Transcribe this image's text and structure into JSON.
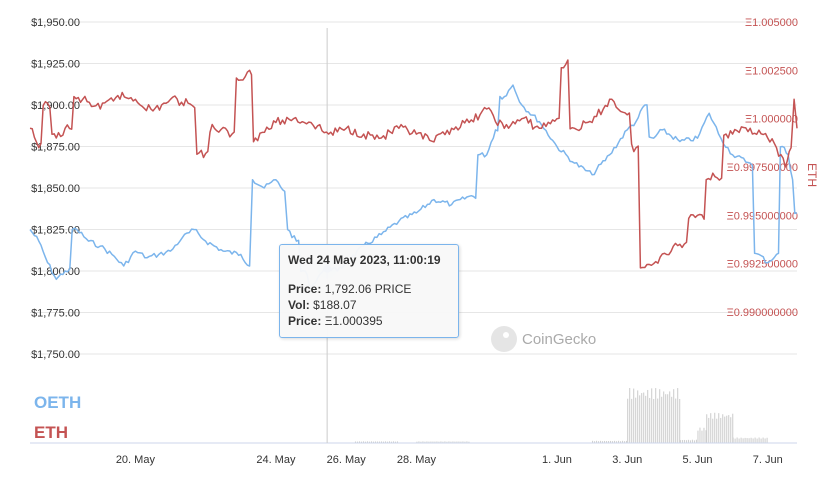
{
  "chart_data": {
    "type": "line",
    "title": "",
    "left_axis": {
      "ticks": [
        "$1,950.00",
        "$1,925.00",
        "$1,900.00",
        "$1,875.00",
        "$1,850.00",
        "$1,825.00",
        "$1,800.00",
        "$1,775.00",
        "$1,750.00"
      ],
      "range": [
        1750,
        1950
      ]
    },
    "right_axis": {
      "title": "ETH",
      "ticks": [
        "Ξ1.005000",
        "Ξ1.002500",
        "Ξ1.000000",
        "Ξ0.997500000",
        "Ξ0.995000000",
        "Ξ0.992500000",
        "Ξ0.990000000"
      ],
      "range": [
        0.99,
        1.005
      ]
    },
    "x_axis": {
      "ticks": [
        "20. May",
        "24. May",
        "26. May",
        "28. May",
        "1. Jun",
        "3. Jun",
        "5. Jun",
        "7. Jun"
      ],
      "range_days": [
        "2023-05-17",
        "2023-06-07T20:00"
      ]
    },
    "series": [
      {
        "name": "OETH",
        "color": "#7cb5ec",
        "axis": "left",
        "points": [
          [
            "2023-05-17T00:00",
            1825
          ],
          [
            "2023-05-17T06:00",
            1818
          ],
          [
            "2023-05-17T12:00",
            1805
          ],
          [
            "2023-05-17T18:00",
            1795
          ],
          [
            "2023-05-18T00:00",
            1800
          ],
          [
            "2023-05-18T08:00",
            1825
          ],
          [
            "2023-05-18T16:00",
            1818
          ],
          [
            "2023-05-19T00:00",
            1815
          ],
          [
            "2023-05-19T08:00",
            1810
          ],
          [
            "2023-05-19T16:00",
            1803
          ],
          [
            "2023-05-20T00:00",
            1812
          ],
          [
            "2023-05-20T08:00",
            1808
          ],
          [
            "2023-05-20T16:00",
            1810
          ],
          [
            "2023-05-21T00:00",
            1812
          ],
          [
            "2023-05-21T08:00",
            1820
          ],
          [
            "2023-05-21T16:00",
            1825
          ],
          [
            "2023-05-22T00:00",
            1818
          ],
          [
            "2023-05-22T12:00",
            1812
          ],
          [
            "2023-05-23T00:00",
            1810
          ],
          [
            "2023-05-23T06:00",
            1803
          ],
          [
            "2023-05-23T08:00",
            1855
          ],
          [
            "2023-05-23T16:00",
            1850
          ],
          [
            "2023-05-24T00:00",
            1855
          ],
          [
            "2023-05-24T06:00",
            1848
          ],
          [
            "2023-05-24T08:00",
            1825
          ],
          [
            "2023-05-24T14:00",
            1818
          ],
          [
            "2023-05-24T20:00",
            1800
          ],
          [
            "2023-05-25T00:00",
            1790
          ],
          [
            "2023-05-25T06:00",
            1798
          ],
          [
            "2023-05-25T12:00",
            1802
          ],
          [
            "2023-05-25T18:00",
            1800
          ],
          [
            "2023-05-26T00:00",
            1805
          ],
          [
            "2023-05-26T12:00",
            1815
          ],
          [
            "2023-05-27T00:00",
            1822
          ],
          [
            "2023-05-27T12:00",
            1830
          ],
          [
            "2023-05-28T00:00",
            1835
          ],
          [
            "2023-05-28T12:00",
            1843
          ],
          [
            "2023-05-29T00:00",
            1840
          ],
          [
            "2023-05-29T12:00",
            1845
          ],
          [
            "2023-05-30T00:00",
            1870
          ],
          [
            "2023-05-30T06:00",
            1885
          ],
          [
            "2023-05-30T12:00",
            1905
          ],
          [
            "2023-05-30T18:00",
            1912
          ],
          [
            "2023-05-31T00:00",
            1900
          ],
          [
            "2023-05-31T12:00",
            1890
          ],
          [
            "2023-06-01T00:00",
            1875
          ],
          [
            "2023-06-01T12:00",
            1865
          ],
          [
            "2023-06-02T00:00",
            1858
          ],
          [
            "2023-06-02T12:00",
            1870
          ],
          [
            "2023-06-03T00:00",
            1885
          ],
          [
            "2023-06-03T06:00",
            1890
          ],
          [
            "2023-06-03T12:00",
            1900
          ],
          [
            "2023-06-03T18:00",
            1880
          ],
          [
            "2023-06-04T00:00",
            1885
          ],
          [
            "2023-06-04T12:00",
            1878
          ],
          [
            "2023-06-05T00:00",
            1880
          ],
          [
            "2023-06-05T08:00",
            1895
          ],
          [
            "2023-06-05T16:00",
            1880
          ],
          [
            "2023-06-06T00:00",
            1870
          ],
          [
            "2023-06-06T12:00",
            1865
          ],
          [
            "2023-06-06T18:00",
            1810
          ],
          [
            "2023-06-07T00:00",
            1805
          ],
          [
            "2023-06-07T06:00",
            1810
          ],
          [
            "2023-06-07T10:00",
            1875
          ],
          [
            "2023-06-07T14:00",
            1870
          ],
          [
            "2023-06-07T17:00",
            1855
          ],
          [
            "2023-06-07T20:00",
            1835
          ]
        ]
      },
      {
        "name": "ETH",
        "color": "#c45353",
        "axis": "right",
        "points": [
          [
            "2023-05-17T00:00",
            0.9995
          ],
          [
            "2023-05-17T06:00",
            0.9985
          ],
          [
            "2023-05-17T12:00",
            1.0008
          ],
          [
            "2023-05-17T18:00",
            0.999
          ],
          [
            "2023-05-18T00:00",
            0.9995
          ],
          [
            "2023-05-18T12:00",
            1.001
          ],
          [
            "2023-05-19T00:00",
            1.0005
          ],
          [
            "2023-05-19T12:00",
            1.0012
          ],
          [
            "2023-05-20T00:00",
            1.001
          ],
          [
            "2023-05-20T12:00",
            1.0004
          ],
          [
            "2023-05-21T00:00",
            1.001
          ],
          [
            "2023-05-21T12:00",
            1.0008
          ],
          [
            "2023-05-22T00:00",
            0.9982
          ],
          [
            "2023-05-22T06:00",
            0.9995
          ],
          [
            "2023-05-22T18:00",
            0.9992
          ],
          [
            "2023-05-23T00:00",
            1.002
          ],
          [
            "2023-05-23T06:00",
            1.0025
          ],
          [
            "2023-05-23T10:00",
            0.999
          ],
          [
            "2023-05-24T00:00",
            0.9998
          ],
          [
            "2023-05-24T12:00",
            1.0
          ],
          [
            "2023-05-25T00:00",
            0.9998
          ],
          [
            "2023-05-25T12:00",
            0.9992
          ],
          [
            "2023-05-26T00:00",
            0.9995
          ],
          [
            "2023-05-26T12:00",
            0.9992
          ],
          [
            "2023-05-27T00:00",
            0.999
          ],
          [
            "2023-05-27T12:00",
            0.9995
          ],
          [
            "2023-05-28T00:00",
            0.9992
          ],
          [
            "2023-05-28T12:00",
            0.9988
          ],
          [
            "2023-05-29T00:00",
            0.9995
          ],
          [
            "2023-05-29T12:00",
            0.9998
          ],
          [
            "2023-05-30T00:00",
            1.0005
          ],
          [
            "2023-05-30T12:00",
            0.9995
          ],
          [
            "2023-05-31T00:00",
            1.0
          ],
          [
            "2023-05-31T12:00",
            0.9995
          ],
          [
            "2023-06-01T00:00",
            1.0
          ],
          [
            "2023-06-01T06:00",
            1.0028
          ],
          [
            "2023-06-01T12:00",
            0.9995
          ],
          [
            "2023-06-02T00:00",
            0.9998
          ],
          [
            "2023-06-02T12:00",
            1.001
          ],
          [
            "2023-06-03T00:00",
            1.0002
          ],
          [
            "2023-06-03T06:00",
            0.9985
          ],
          [
            "2023-06-03T12:00",
            0.9923
          ],
          [
            "2023-06-03T18:00",
            0.9925
          ],
          [
            "2023-06-04T00:00",
            0.993
          ],
          [
            "2023-06-04T12:00",
            0.9935
          ],
          [
            "2023-06-05T00:00",
            0.995
          ],
          [
            "2023-06-05T12:00",
            0.997
          ],
          [
            "2023-06-06T00:00",
            0.9992
          ],
          [
            "2023-06-06T12:00",
            0.9995
          ],
          [
            "2023-06-07T00:00",
            0.999
          ],
          [
            "2023-06-07T06:00",
            0.9985
          ],
          [
            "2023-06-07T12:00",
            0.9975
          ],
          [
            "2023-06-07T16:00",
            0.9985
          ],
          [
            "2023-06-07T18:00",
            1.001
          ],
          [
            "2023-06-07T20:00",
            0.9995
          ]
        ]
      }
    ],
    "volume_bars": [
      {
        "start": "2023-05-26T06:00",
        "end": "2023-05-27T12:00",
        "level": 0.03
      },
      {
        "start": "2023-05-28T00:00",
        "end": "2023-05-29T12:00",
        "level": 0.03
      },
      {
        "start": "2023-06-02T00:00",
        "end": "2023-06-03T00:00",
        "level": 0.04
      },
      {
        "start": "2023-06-03T00:00",
        "end": "2023-06-04T12:00",
        "level": 1.0
      },
      {
        "start": "2023-06-04T12:00",
        "end": "2023-06-05T00:00",
        "level": 0.06
      },
      {
        "start": "2023-06-05T00:00",
        "end": "2023-06-05T06:00",
        "level": 0.28
      },
      {
        "start": "2023-06-05T06:00",
        "end": "2023-06-06T00:00",
        "level": 0.55
      },
      {
        "start": "2023-06-06T00:00",
        "end": "2023-06-07T00:00",
        "level": 0.1
      }
    ],
    "crosshair_date": "2023-05-25T11:00",
    "tooltip": {
      "title": "Wed 24 May 2023, 11:00:19",
      "price_label": "Price:",
      "price_value": "1,792.06 PRICE",
      "vol_label": "Vol:",
      "vol_value": "$188.07",
      "price2_label": "Price:",
      "price2_value": "Ξ1.000395"
    },
    "legend": {
      "placement": "bottom-left",
      "items": [
        "OETH",
        "ETH"
      ]
    },
    "watermark": "CoinGecko",
    "grid": "horizontal"
  }
}
